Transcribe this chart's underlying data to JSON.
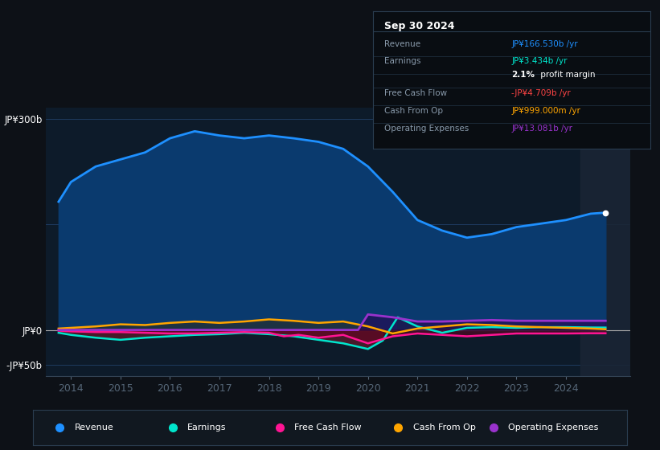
{
  "background_color": "#0d1117",
  "plot_bg_color": "#0d1b2a",
  "grid_color": "#1e3a5f",
  "ylim": [
    -65,
    315
  ],
  "xlim": [
    2013.5,
    2025.3
  ],
  "xticks": [
    2014,
    2015,
    2016,
    2017,
    2018,
    2019,
    2020,
    2021,
    2022,
    2023,
    2024
  ],
  "revenue": {
    "x": [
      2013.75,
      2014.0,
      2014.5,
      2015.0,
      2015.5,
      2016.0,
      2016.5,
      2017.0,
      2017.5,
      2018.0,
      2018.5,
      2019.0,
      2019.5,
      2020.0,
      2020.5,
      2021.0,
      2021.5,
      2022.0,
      2022.5,
      2023.0,
      2023.5,
      2024.0,
      2024.5,
      2024.8
    ],
    "y": [
      182,
      210,
      232,
      242,
      252,
      272,
      282,
      276,
      272,
      276,
      272,
      267,
      257,
      232,
      196,
      156,
      141,
      131,
      136,
      146,
      151,
      156,
      165,
      166.5
    ],
    "color": "#1e90ff",
    "fill_color": "#0a3a6e"
  },
  "earnings": {
    "x": [
      2013.75,
      2014.0,
      2014.5,
      2015.0,
      2015.5,
      2016.0,
      2016.5,
      2017.0,
      2017.5,
      2018.0,
      2018.5,
      2019.0,
      2019.5,
      2020.0,
      2020.3,
      2020.6,
      2021.0,
      2021.5,
      2022.0,
      2022.5,
      2023.0,
      2023.5,
      2024.0,
      2024.5,
      2024.8
    ],
    "y": [
      -4,
      -7,
      -11,
      -14,
      -11,
      -9,
      -7,
      -6,
      -4,
      -6,
      -9,
      -14,
      -19,
      -27,
      -15,
      18,
      5,
      -4,
      3,
      4,
      3,
      4,
      4,
      3.5,
      3.4
    ],
    "color": "#00e5cc"
  },
  "free_cash_flow": {
    "x": [
      2013.75,
      2014.0,
      2014.5,
      2015.0,
      2015.5,
      2016.0,
      2016.5,
      2017.0,
      2017.5,
      2018.0,
      2018.3,
      2018.6,
      2019.0,
      2019.5,
      2020.0,
      2020.5,
      2021.0,
      2021.5,
      2022.0,
      2022.5,
      2023.0,
      2023.5,
      2024.0,
      2024.5,
      2024.8
    ],
    "y": [
      -1,
      -2,
      -3,
      -3,
      -4,
      -5,
      -5,
      -4,
      -3,
      -4,
      -9,
      -7,
      -11,
      -7,
      -19,
      -9,
      -5,
      -7,
      -9,
      -7,
      -5,
      -5,
      -5,
      -4.7,
      -4.7
    ],
    "color": "#ff1493"
  },
  "cash_from_op": {
    "x": [
      2013.75,
      2014.0,
      2014.5,
      2015.0,
      2015.5,
      2016.0,
      2016.5,
      2017.0,
      2017.5,
      2018.0,
      2018.5,
      2019.0,
      2019.5,
      2020.0,
      2020.5,
      2021.0,
      2021.5,
      2022.0,
      2022.5,
      2023.0,
      2023.5,
      2024.0,
      2024.5,
      2024.8
    ],
    "y": [
      2,
      3,
      5,
      8,
      7,
      10,
      12,
      10,
      12,
      15,
      13,
      10,
      12,
      5,
      -5,
      2,
      5,
      8,
      7,
      5,
      4,
      3,
      2,
      1
    ],
    "color": "#ffa500"
  },
  "operating_expenses": {
    "x": [
      2013.75,
      2019.8,
      2020.0,
      2020.5,
      2021.0,
      2021.5,
      2022.0,
      2022.5,
      2023.0,
      2023.5,
      2024.0,
      2024.5,
      2024.8
    ],
    "y": [
      0,
      0,
      22,
      18,
      12,
      12,
      13,
      14,
      13,
      13,
      13,
      13,
      13
    ],
    "color": "#9932cc"
  },
  "info_box": {
    "date": "Sep 30 2024",
    "rows": [
      {
        "label": "Revenue",
        "value": "JP¥166.530b /yr",
        "value_color": "#1e90ff"
      },
      {
        "label": "Earnings",
        "value": "JP¥3.434b /yr",
        "value_color": "#00e5cc"
      },
      {
        "label": "",
        "value": "2.1% profit margin",
        "value_color": "#ffffff",
        "bold_pct": true
      },
      {
        "label": "Free Cash Flow",
        "value": "-JP¥4.709b /yr",
        "value_color": "#ff4444"
      },
      {
        "label": "Cash From Op",
        "value": "JP¥999.000m /yr",
        "value_color": "#ffa500"
      },
      {
        "label": "Operating Expenses",
        "value": "JP¥13.081b /yr",
        "value_color": "#9932cc"
      }
    ]
  },
  "legend": [
    {
      "label": "Revenue",
      "color": "#1e90ff"
    },
    {
      "label": "Earnings",
      "color": "#00e5cc"
    },
    {
      "label": "Free Cash Flow",
      "color": "#ff1493"
    },
    {
      "label": "Cash From Op",
      "color": "#ffa500"
    },
    {
      "label": "Operating Expenses",
      "color": "#9932cc"
    }
  ]
}
